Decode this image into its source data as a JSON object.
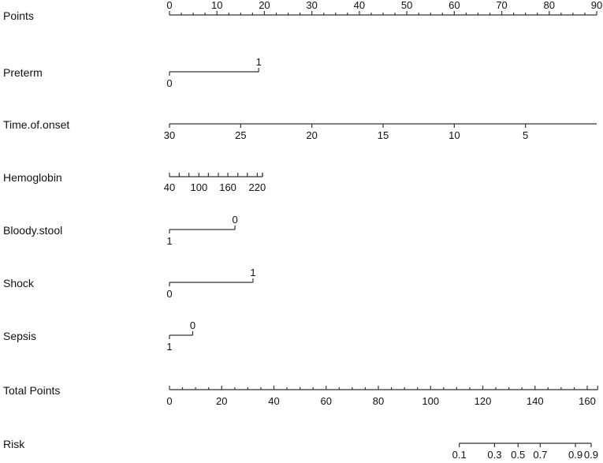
{
  "chart_data": {
    "type": "nomogram",
    "title": "",
    "points_scale": {
      "min": 0,
      "max": 90
    },
    "rows": [
      {
        "name": "Points",
        "kind": "points_axis",
        "ticks": [
          0,
          10,
          20,
          30,
          40,
          50,
          60,
          70,
          80,
          90
        ],
        "minor_step": 2.5
      },
      {
        "name": "Preterm",
        "kind": "categorical",
        "levels": [
          {
            "label": "0",
            "points": 0
          },
          {
            "label": "1",
            "points": 18.8
          }
        ]
      },
      {
        "name": "Time.of.onset",
        "kind": "continuous",
        "ticks": [
          {
            "label": "30",
            "points": 0
          },
          {
            "label": "25",
            "points": 15
          },
          {
            "label": "20",
            "points": 30
          },
          {
            "label": "15",
            "points": 45
          },
          {
            "label": "10",
            "points": 60
          },
          {
            "label": "5",
            "points": 75
          }
        ],
        "axis_end_points": 90
      },
      {
        "name": "Hemoglobin",
        "kind": "continuous",
        "ticks": [
          {
            "label": "40",
            "points": 0
          },
          {
            "label": "100",
            "points": 6.2
          },
          {
            "label": "160",
            "points": 12.3
          },
          {
            "label": "220",
            "points": 18.5
          }
        ],
        "minor_ticks_points": [
          0,
          2.05,
          4.1,
          6.2,
          8.2,
          10.3,
          12.3,
          14.4,
          16.4,
          18.5,
          19.6
        ],
        "axis_end_points": 19.6
      },
      {
        "name": "Bloody.stool",
        "kind": "categorical",
        "levels": [
          {
            "label": "1",
            "points": 0
          },
          {
            "label": "0",
            "points": 13.8
          }
        ]
      },
      {
        "name": "Shock",
        "kind": "categorical",
        "levels": [
          {
            "label": "0",
            "points": 0
          },
          {
            "label": "1",
            "points": 17.6
          }
        ]
      },
      {
        "name": "Sepsis",
        "kind": "categorical",
        "levels": [
          {
            "label": "1",
            "points": 0
          },
          {
            "label": "0",
            "points": 4.9
          }
        ]
      },
      {
        "name": "Total Points",
        "kind": "total_axis",
        "ticks": [
          0,
          20,
          40,
          60,
          80,
          100,
          120,
          140,
          160
        ],
        "minor_step": 5,
        "range": [
          0,
          164
        ]
      },
      {
        "name": "Risk",
        "kind": "risk_axis",
        "ticks": [
          {
            "label": "0.1",
            "total": 111
          },
          {
            "label": "0.3",
            "total": 124.5
          },
          {
            "label": "0.5",
            "total": 133.5
          },
          {
            "label": "0.7",
            "total": 142
          },
          {
            "label": "0.9",
            "total": 155.5
          },
          {
            "label": "0.9",
            "total": 161.5
          }
        ]
      }
    ]
  },
  "labels": {
    "points": "Points",
    "preterm": "Preterm",
    "time_of_onset": "Time.of.onset",
    "hemoglobin": "Hemoglobin",
    "bloody_stool": "Bloody.stool",
    "shock": "Shock",
    "sepsis": "Sepsis",
    "total_points": "Total Points",
    "risk": "Risk"
  }
}
